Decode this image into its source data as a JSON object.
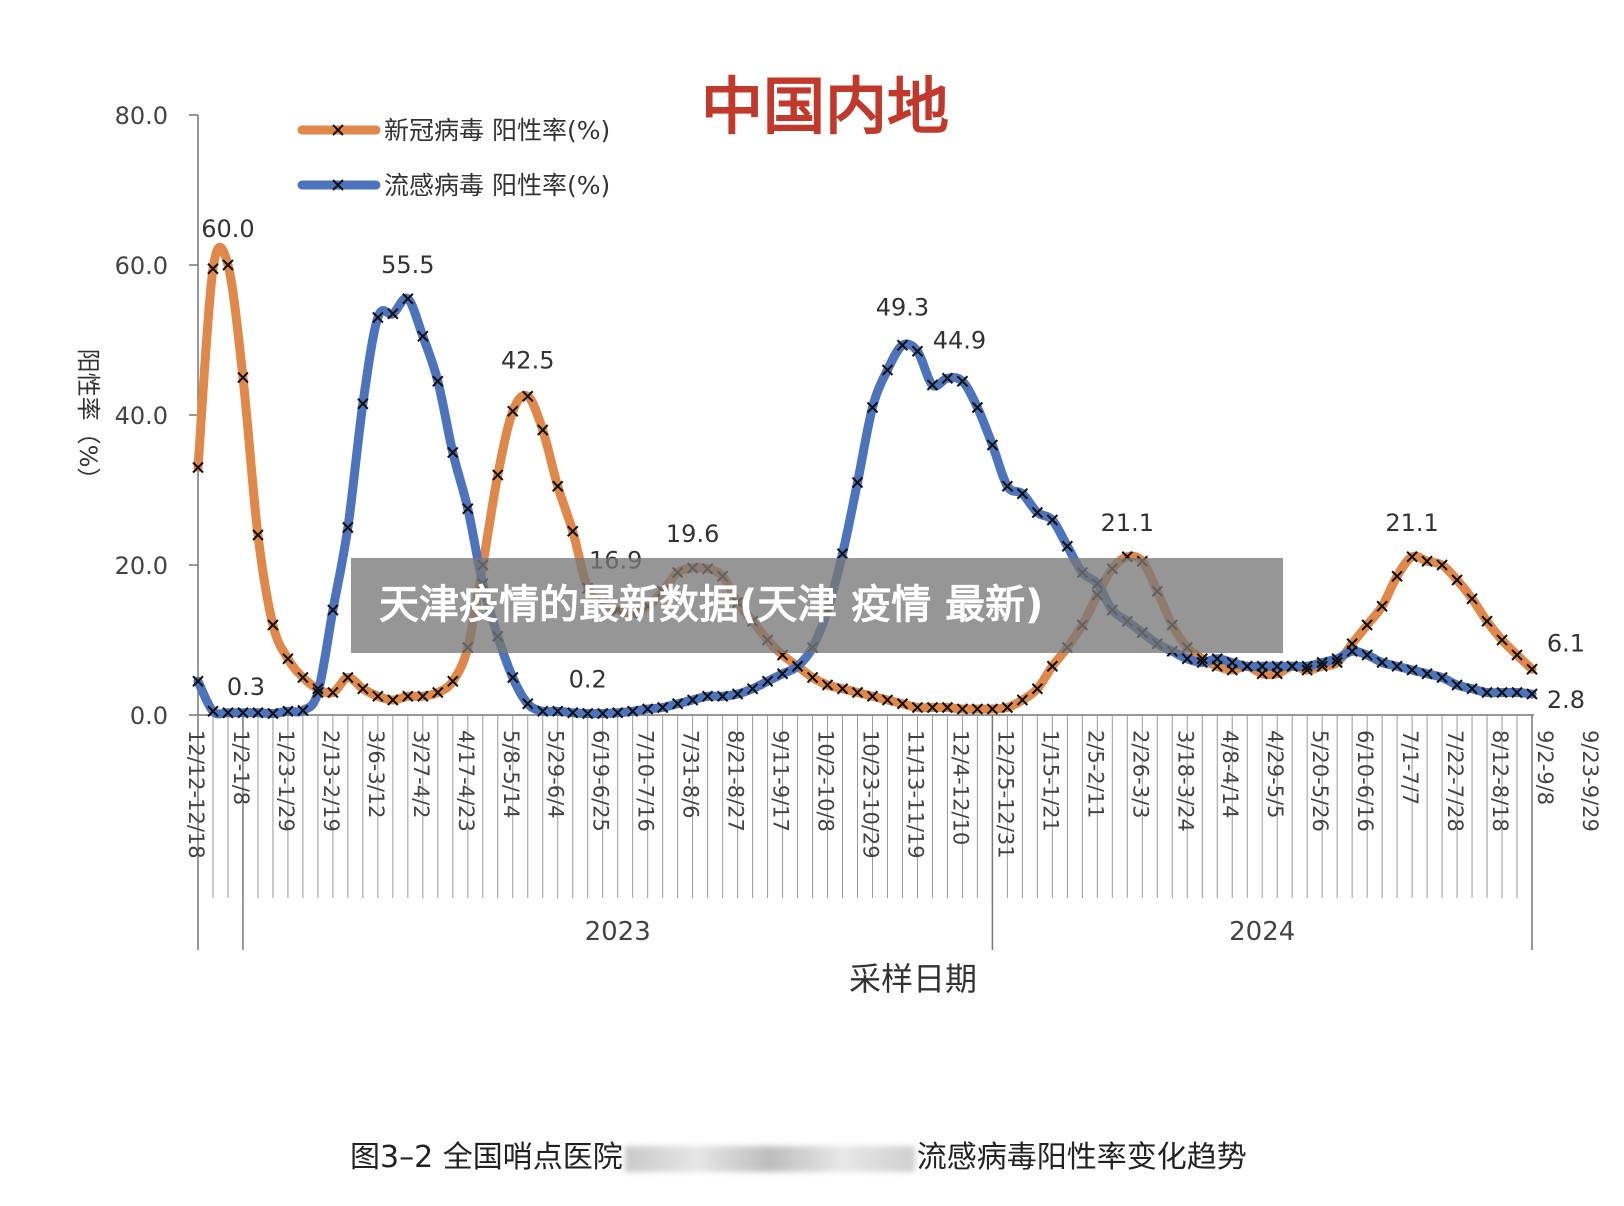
{
  "chart_data": {
    "type": "line",
    "title": "中国内地",
    "ylabel": "阳性率（%）",
    "xlabel": "采样日期",
    "ylim": [
      0,
      80
    ],
    "yticks": [
      "0.0",
      "20.0",
      "40.0",
      "60.0",
      "80.0"
    ],
    "years": [
      "2023",
      "2024"
    ],
    "legend_position": "top-left",
    "grid": false,
    "x_tick_labels": [
      "12/12-12/18",
      "1/2-1/8",
      "1/23-1/29",
      "2/13-2/19",
      "3/6-3/12",
      "3/27-4/2",
      "4/17-4/23",
      "5/8-5/14",
      "5/29-6/4",
      "6/19-6/25",
      "7/10-7/16",
      "7/31-8/6",
      "8/21-8/27",
      "9/11-9/17",
      "10/2-10/8",
      "10/23-10/29",
      "11/13-11/19",
      "12/4-12/10",
      "12/25-12/31",
      "1/15-1/21",
      "2/5-2/11",
      "2/26-3/3",
      "3/18-3/24",
      "4/8-4/14",
      "4/29-5/5",
      "5/20-5/26",
      "6/10-6/16",
      "7/1-7/7",
      "7/22-7/28",
      "8/12-8/18",
      "9/2-9/8",
      "9/23-9/29"
    ],
    "series": [
      {
        "name": "新冠病毒 阳性率(%)",
        "color": "#e0884a",
        "values": [
          33.0,
          59.5,
          60.0,
          45.0,
          24.0,
          12.0,
          7.5,
          5.0,
          3.5,
          3.0,
          5.0,
          3.5,
          2.5,
          2.0,
          2.5,
          2.5,
          3.0,
          4.5,
          9.0,
          20.0,
          32.0,
          40.5,
          42.5,
          38.0,
          30.5,
          24.5,
          16.9,
          15.0,
          14.0,
          13.5,
          14.5,
          16.5,
          19.0,
          19.6,
          19.5,
          18.5,
          15.0,
          12.5,
          10.0,
          8.0,
          6.5,
          5.0,
          4.0,
          3.5,
          3.0,
          2.5,
          2.0,
          1.5,
          1.0,
          1.0,
          1.0,
          0.8,
          0.8,
          0.8,
          1.0,
          2.0,
          3.5,
          6.5,
          9.0,
          12.0,
          16.0,
          19.5,
          21.1,
          20.5,
          16.5,
          12.0,
          9.0,
          7.5,
          6.5,
          6.0,
          6.5,
          5.5,
          5.5,
          6.5,
          6.0,
          6.5,
          7.0,
          9.5,
          12.0,
          14.5,
          18.5,
          21.1,
          20.5,
          20.0,
          18.0,
          15.5,
          12.5,
          10.0,
          8.0,
          6.1
        ]
      },
      {
        "name": "流感病毒 阳性率(%)",
        "color": "#4d73bc",
        "values": [
          4.5,
          0.5,
          0.3,
          0.3,
          0.3,
          0.2,
          0.5,
          0.6,
          3.0,
          14.0,
          25.0,
          41.5,
          53.0,
          53.5,
          55.5,
          50.5,
          44.5,
          35.0,
          27.5,
          17.5,
          10.5,
          5.0,
          1.5,
          0.5,
          0.5,
          0.3,
          0.2,
          0.2,
          0.3,
          0.5,
          0.8,
          1.0,
          1.5,
          2.0,
          2.5,
          2.5,
          2.8,
          3.5,
          4.5,
          5.5,
          6.5,
          9.0,
          14.0,
          21.5,
          31.0,
          41.0,
          46.0,
          49.3,
          48.5,
          44.0,
          44.9,
          44.5,
          41.0,
          36.0,
          30.5,
          29.5,
          27.0,
          26.0,
          22.5,
          19.0,
          17.5,
          14.0,
          12.5,
          11.0,
          9.5,
          8.5,
          7.5,
          7.0,
          7.5,
          7.0,
          6.5,
          6.5,
          6.5,
          6.5,
          6.5,
          7.0,
          7.5,
          8.5,
          8.0,
          7.0,
          6.5,
          6.0,
          5.5,
          5.0,
          4.0,
          3.5,
          3.0,
          3.0,
          3.0,
          2.8
        ]
      }
    ],
    "annotations": [
      {
        "text": "60.0",
        "series": 0,
        "index": 2
      },
      {
        "text": "0.3",
        "series": 1,
        "index": 2
      },
      {
        "text": "55.5",
        "series": 1,
        "index": 14
      },
      {
        "text": "42.5",
        "series": 0,
        "index": 22
      },
      {
        "text": "0.2",
        "series": 1,
        "index": 26
      },
      {
        "text": "16.9",
        "series": 0,
        "index": 26
      },
      {
        "text": "19.6",
        "series": 0,
        "index": 33
      },
      {
        "text": "49.3",
        "series": 1,
        "index": 47
      },
      {
        "text": "44.9",
        "series": 1,
        "index": 50
      },
      {
        "text": "21.1",
        "series": 0,
        "index": 62
      },
      {
        "text": "21.1",
        "series": 0,
        "index": 81
      },
      {
        "text": "6.1",
        "series": 0,
        "index": 89
      },
      {
        "text": "2.8",
        "series": 1,
        "index": 89
      }
    ]
  },
  "overlay_title": "天津疫情的最新数据(天津 疫情 最新)",
  "caption": {
    "prefix": "图3–2 全国哨点医院",
    "suffix": "流感病毒阳性率变化趋势"
  }
}
